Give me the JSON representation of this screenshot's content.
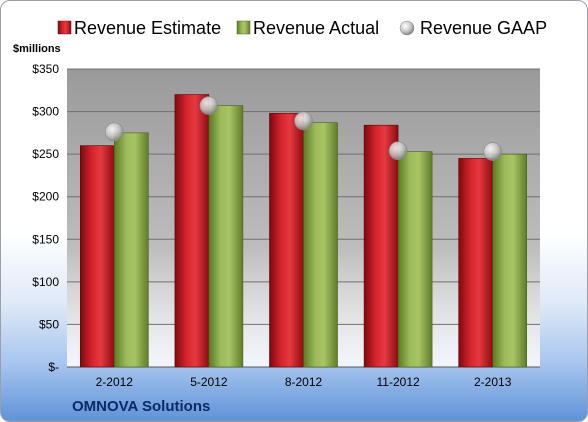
{
  "company": "OMNOVA Solutions",
  "chart_data": {
    "type": "bar",
    "title": "",
    "ylabel": "$millions",
    "xlabel": "",
    "categories": [
      "2-2012",
      "5-2012",
      "8-2012",
      "11-2012",
      "2-2013"
    ],
    "series": [
      {
        "name": "Revenue Estimate",
        "type": "bar",
        "color": "#c0121a",
        "values": [
          260,
          320,
          298,
          284,
          245
        ]
      },
      {
        "name": "Revenue Actual",
        "type": "bar",
        "color": "#8aa84a",
        "values": [
          275,
          307,
          287,
          253,
          250
        ]
      },
      {
        "name": "Revenue GAAP",
        "type": "scatter",
        "color": "#c8c8c8",
        "values": [
          276,
          307,
          289,
          254,
          253
        ]
      }
    ],
    "ylim": [
      0,
      350
    ],
    "yticks": [
      0,
      50,
      100,
      150,
      200,
      250,
      300,
      350
    ],
    "ytick_labels": [
      "$-",
      "$50",
      "$100",
      "$150",
      "$200",
      "$250",
      "$300",
      "$350"
    ],
    "grid": true,
    "legend_position": "top"
  }
}
